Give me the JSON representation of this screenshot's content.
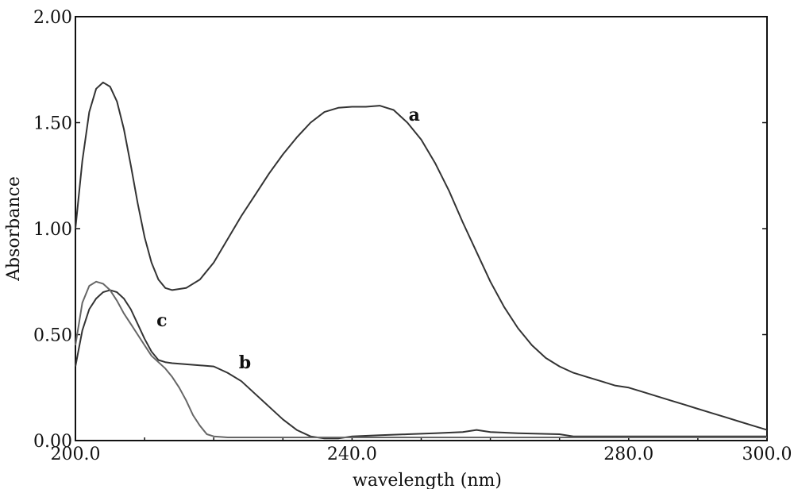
{
  "chart_data": {
    "type": "line",
    "title": "",
    "xlabel": "wavelength (nm)",
    "ylabel": "Absorbance",
    "xlim": [
      200.0,
      300.0
    ],
    "ylim": [
      0.0,
      2.0
    ],
    "x_ticks": [
      200.0,
      240.0,
      280.0,
      300.0
    ],
    "x_tick_labels": [
      "200.0",
      "240.0",
      "280.0",
      "300.0"
    ],
    "y_ticks": [
      0.0,
      0.5,
      1.0,
      1.5,
      2.0
    ],
    "y_tick_labels": [
      "0.00",
      "0.50",
      "1.00",
      "1.50",
      "2.00"
    ],
    "grid": false,
    "series": [
      {
        "name": "a",
        "color": "#333333",
        "label_at": [
          249.0,
          1.51
        ],
        "x": [
          200,
          201,
          202,
          203,
          204,
          205,
          206,
          207,
          208,
          209,
          210,
          211,
          212,
          213,
          214,
          216,
          218,
          220,
          222,
          224,
          226,
          228,
          230,
          232,
          234,
          236,
          238,
          240,
          242,
          244,
          245,
          246,
          248,
          250,
          252,
          254,
          256,
          258,
          260,
          262,
          264,
          266,
          268,
          270,
          272,
          274,
          276,
          278,
          280,
          282,
          284,
          286,
          288,
          290,
          292,
          294,
          296,
          298,
          300
        ],
        "y": [
          1.0,
          1.32,
          1.55,
          1.66,
          1.69,
          1.67,
          1.6,
          1.47,
          1.3,
          1.12,
          0.96,
          0.84,
          0.76,
          0.72,
          0.71,
          0.72,
          0.76,
          0.84,
          0.95,
          1.06,
          1.16,
          1.26,
          1.35,
          1.43,
          1.5,
          1.55,
          1.57,
          1.575,
          1.575,
          1.58,
          1.57,
          1.56,
          1.5,
          1.42,
          1.31,
          1.18,
          1.03,
          0.89,
          0.75,
          0.63,
          0.53,
          0.45,
          0.39,
          0.35,
          0.32,
          0.3,
          0.28,
          0.26,
          0.25,
          0.23,
          0.21,
          0.19,
          0.17,
          0.15,
          0.13,
          0.11,
          0.09,
          0.07,
          0.05
        ]
      },
      {
        "name": "b",
        "color": "#333333",
        "label_at": [
          224.5,
          0.34
        ],
        "x": [
          200,
          201,
          202,
          203,
          204,
          205,
          206,
          207,
          208,
          209,
          210,
          211,
          212,
          213,
          214,
          216,
          218,
          220,
          222,
          224,
          226,
          228,
          230,
          232,
          234,
          236,
          238,
          240,
          244,
          248,
          252,
          256,
          258,
          260,
          264,
          270,
          272,
          280,
          290,
          300
        ],
        "y": [
          0.35,
          0.52,
          0.62,
          0.67,
          0.7,
          0.71,
          0.7,
          0.67,
          0.62,
          0.55,
          0.48,
          0.42,
          0.38,
          0.37,
          0.365,
          0.36,
          0.355,
          0.35,
          0.32,
          0.28,
          0.22,
          0.16,
          0.1,
          0.05,
          0.02,
          0.01,
          0.01,
          0.02,
          0.025,
          0.03,
          0.035,
          0.04,
          0.05,
          0.04,
          0.035,
          0.03,
          0.02,
          0.02,
          0.02,
          0.02
        ]
      },
      {
        "name": "c",
        "color": "#666666",
        "label_at": [
          212.5,
          0.54
        ],
        "x": [
          200,
          201,
          202,
          203,
          204,
          205,
          206,
          207,
          208,
          209,
          210,
          211,
          212,
          213,
          214,
          215,
          216,
          217,
          218,
          219,
          220,
          222,
          226,
          230,
          240,
          250,
          260,
          270,
          280,
          290,
          300
        ],
        "y": [
          0.45,
          0.65,
          0.73,
          0.75,
          0.74,
          0.71,
          0.66,
          0.6,
          0.55,
          0.5,
          0.45,
          0.4,
          0.37,
          0.34,
          0.3,
          0.25,
          0.19,
          0.12,
          0.07,
          0.03,
          0.02,
          0.015,
          0.015,
          0.015,
          0.015,
          0.015,
          0.015,
          0.015,
          0.015,
          0.015,
          0.015
        ]
      }
    ]
  }
}
